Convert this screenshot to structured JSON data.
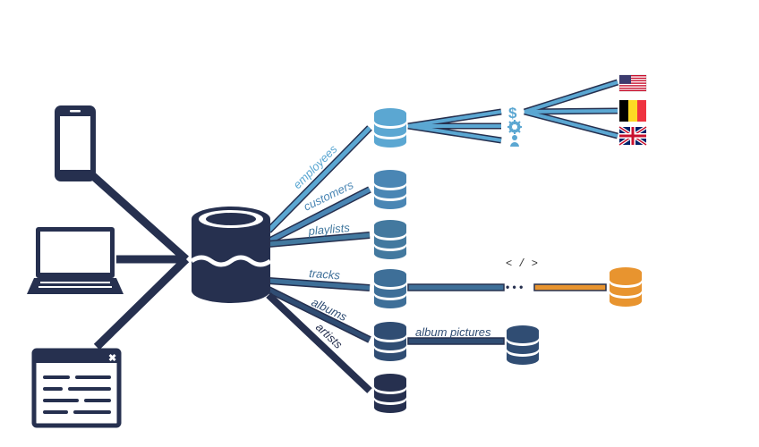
{
  "colors": {
    "navy": "#26304f",
    "dark": "#2c3556",
    "blue_light": "#5ba7d2",
    "blue_mid": "#4a86b4",
    "blue_steel": "#3e6f98",
    "blue_deep": "#304d73",
    "orange": "#e8942f"
  },
  "devices": [
    {
      "name": "phone-icon"
    },
    {
      "name": "laptop-icon"
    },
    {
      "name": "browser-window-icon"
    }
  ],
  "central_db": {
    "name": "central-database-icon"
  },
  "tables": [
    {
      "key": "employees",
      "label": "employees",
      "color": "#5ba7d2"
    },
    {
      "key": "customers",
      "label": "customers",
      "color": "#4a86b4"
    },
    {
      "key": "playlists",
      "label": "playlists",
      "color": "#43799f"
    },
    {
      "key": "tracks",
      "label": "tracks",
      "color": "#3e6f98"
    },
    {
      "key": "albums",
      "label": "albums",
      "color": "#304d73"
    },
    {
      "key": "artists",
      "label": "artists",
      "color": "#26304f"
    }
  ],
  "employee_icons": [
    "dollar-icon",
    "gear-icon",
    "person-icon"
  ],
  "flags": [
    "flag-us-icon",
    "flag-be-icon",
    "flag-uk-icon"
  ],
  "tracks_link": {
    "code_label": "< / >",
    "ellipsis": "• • •"
  },
  "albums_link": {
    "label": "album pictures"
  }
}
